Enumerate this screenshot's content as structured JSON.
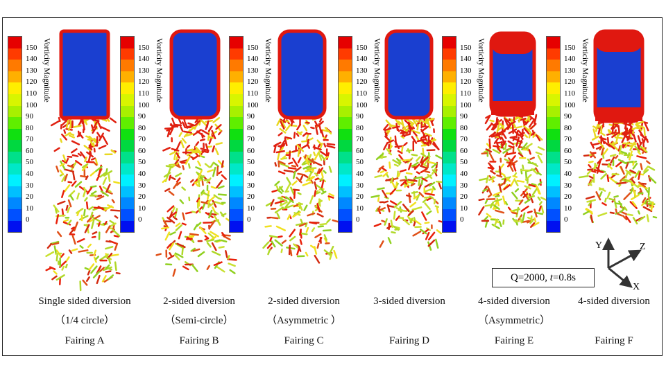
{
  "colorbar": {
    "title": "Vorticity Magnitude",
    "ticks": [
      "150",
      "140",
      "130",
      "120",
      "110",
      "100",
      "90",
      "80",
      "70",
      "60",
      "50",
      "40",
      "30",
      "20",
      "10",
      "0"
    ],
    "colors": [
      "#e60000",
      "#ff3b00",
      "#ff7a00",
      "#ffb000",
      "#ffee00",
      "#d8f500",
      "#a8f000",
      "#60ee00",
      "#10e010",
      "#00d840",
      "#00e08a",
      "#00e8c8",
      "#00f0ff",
      "#00c0ff",
      "#0088ff",
      "#0050ff",
      "#0010f0"
    ]
  },
  "fairings": [
    {
      "line1": "Single sided diversion",
      "line2": "（1/4 circle）",
      "name": "Fairing A"
    },
    {
      "line1": "2-sided diversion",
      "line2": "（Semi-circle）",
      "name": "Fairing B"
    },
    {
      "line1": "2-sided diversion",
      "line2": "（Asymmetric ）",
      "name": "Fairing C"
    },
    {
      "line1": "3-sided diversion",
      "line2": "",
      "name": "Fairing D"
    },
    {
      "line1": "4-sided diversion",
      "line2": "（Asymmetric）",
      "name": "Fairing E"
    },
    {
      "line1": "4-sided diversion",
      "line2": "",
      "name": "Fairing F"
    }
  ],
  "condition": {
    "q": "Q=2000, ",
    "t": "t",
    "rest": "=0.8s"
  },
  "axes": {
    "x": "X",
    "y": "Y",
    "z": "Z"
  }
}
